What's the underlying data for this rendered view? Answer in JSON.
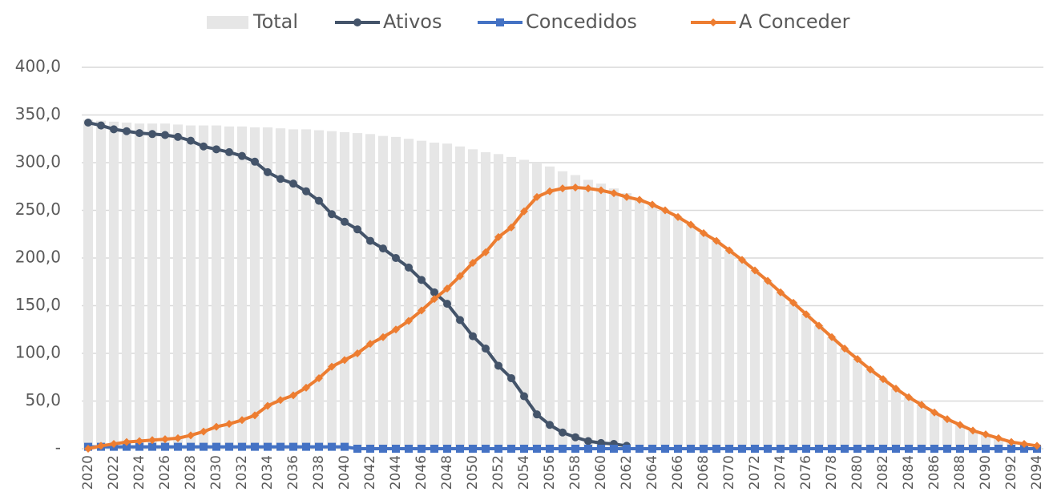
{
  "chart_data": {
    "type": "combo",
    "categories": [
      "2020",
      null,
      "2022",
      null,
      "2024",
      null,
      "2026",
      null,
      "2028",
      null,
      "2030",
      null,
      "2032",
      null,
      "2034",
      null,
      "2036",
      null,
      "2038",
      null,
      "2040",
      null,
      "2042",
      null,
      "2044",
      null,
      "2046",
      null,
      "2048",
      null,
      "2050",
      null,
      "2052",
      null,
      "2054",
      null,
      "2056",
      null,
      "2058",
      null,
      "2060",
      null,
      "2062",
      null,
      "2064",
      null,
      "2066",
      null,
      "2068",
      null,
      "2070",
      null,
      "2072",
      null,
      "2074",
      null,
      "2076",
      null,
      "2078",
      null,
      "2080",
      null,
      "2082",
      null,
      "2084",
      null,
      "2086",
      null,
      "2088",
      null,
      "2090",
      null,
      "2092",
      null,
      "2094"
    ],
    "series": [
      {
        "name": "Total",
        "type": "bar",
        "color": "#e6e6e6",
        "values": [
          345,
          344,
          343,
          342,
          341,
          341,
          341,
          340,
          339,
          339,
          339,
          338,
          338,
          337,
          337,
          336,
          335,
          335,
          334,
          333,
          332,
          331,
          330,
          328,
          327,
          325,
          323,
          321,
          320,
          317,
          314,
          311,
          309,
          306,
          303,
          300,
          296,
          291,
          287,
          282,
          278,
          273,
          268,
          262,
          256,
          250,
          243,
          235,
          226,
          218,
          208,
          198,
          187,
          176,
          164,
          153,
          141,
          129,
          117,
          105,
          94,
          83,
          73,
          63,
          54,
          46,
          38,
          31,
          25,
          19,
          15,
          11,
          7,
          5,
          3
        ]
      },
      {
        "name": "Ativos",
        "type": "line",
        "marker": "circle",
        "color": "#44546a",
        "values": [
          342,
          339,
          335,
          333,
          331,
          330,
          329,
          327,
          323,
          317,
          314,
          311,
          307,
          301,
          290,
          283,
          278,
          270,
          260,
          246,
          238,
          230,
          218,
          210,
          200,
          190,
          177,
          164,
          152,
          135,
          118,
          105,
          87,
          74,
          55,
          36,
          25,
          17,
          12,
          8,
          6,
          5,
          3,
          null,
          null,
          null,
          null,
          null,
          null,
          null,
          null,
          null,
          null,
          null,
          null,
          null,
          null,
          null,
          null,
          null,
          null,
          null,
          null,
          null,
          null,
          null,
          null,
          null,
          null,
          null,
          null,
          null,
          null,
          null,
          null
        ]
      },
      {
        "name": "Concedidos",
        "type": "line",
        "marker": "square",
        "color": "#4472c4",
        "values": [
          2,
          2,
          2,
          2,
          2,
          2,
          2,
          2,
          2,
          2,
          2,
          2,
          2,
          2,
          2,
          2,
          2,
          2,
          2,
          2,
          2,
          0,
          0,
          0,
          0,
          0,
          0,
          0,
          0,
          0,
          0,
          0,
          0,
          0,
          0,
          0,
          0,
          0,
          0,
          0,
          0,
          0,
          0,
          0,
          0,
          0,
          0,
          0,
          0,
          0,
          0,
          0,
          0,
          0,
          0,
          0,
          0,
          0,
          0,
          0,
          0,
          0,
          0,
          0,
          0,
          0,
          0,
          0,
          0,
          0,
          0,
          0,
          0,
          0,
          0
        ]
      },
      {
        "name": "A Conceder",
        "type": "line",
        "marker": "diamond",
        "color": "#ed7d31",
        "values": [
          0,
          3,
          5,
          7,
          8,
          9,
          10,
          11,
          14,
          18,
          23,
          26,
          30,
          35,
          45,
          51,
          56,
          64,
          74,
          86,
          93,
          100,
          110,
          117,
          125,
          134,
          145,
          157,
          168,
          181,
          195,
          206,
          222,
          232,
          249,
          264,
          270,
          273,
          274,
          273,
          271,
          268,
          264,
          261,
          256,
          250,
          243,
          235,
          226,
          218,
          208,
          198,
          187,
          176,
          164,
          153,
          141,
          129,
          117,
          105,
          94,
          83,
          73,
          63,
          54,
          46,
          38,
          31,
          25,
          19,
          15,
          11,
          7,
          5,
          3
        ]
      }
    ],
    "ylim": [
      0,
      400
    ],
    "yticks": [
      {
        "value": 0,
        "label": "-"
      },
      {
        "value": 50,
        "label": "50,0"
      },
      {
        "value": 100,
        "label": "100,0"
      },
      {
        "value": 150,
        "label": "150,0"
      },
      {
        "value": 200,
        "label": "200,0"
      },
      {
        "value": 250,
        "label": "250,0"
      },
      {
        "value": 300,
        "label": "300,0"
      },
      {
        "value": 350,
        "label": "350,0"
      },
      {
        "value": 400,
        "label": "400,0"
      }
    ],
    "grid": true,
    "legend": "top"
  }
}
